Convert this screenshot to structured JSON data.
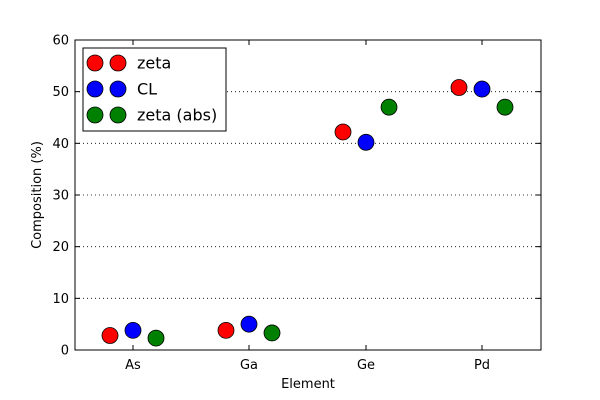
{
  "chart_data": {
    "type": "scatter",
    "categories": [
      "As",
      "Ga",
      "Ge",
      "Pd"
    ],
    "series": [
      {
        "name": "zeta",
        "color": "#ff0000",
        "values": [
          2.8,
          3.8,
          42.2,
          50.8
        ]
      },
      {
        "name": "CL",
        "color": "#0000ff",
        "values": [
          3.8,
          5.0,
          40.2,
          50.5
        ]
      },
      {
        "name": "zeta (abs)",
        "color": "#008000",
        "values": [
          2.3,
          3.3,
          47.0,
          47.0
        ]
      }
    ],
    "xlabel": "Element",
    "ylabel": "Composition (%)",
    "ylim": [
      0,
      60
    ],
    "yticks": [
      0,
      10,
      20,
      30,
      40,
      50,
      60
    ],
    "grid": "horizontal dotted",
    "legend_position": "top-left"
  }
}
